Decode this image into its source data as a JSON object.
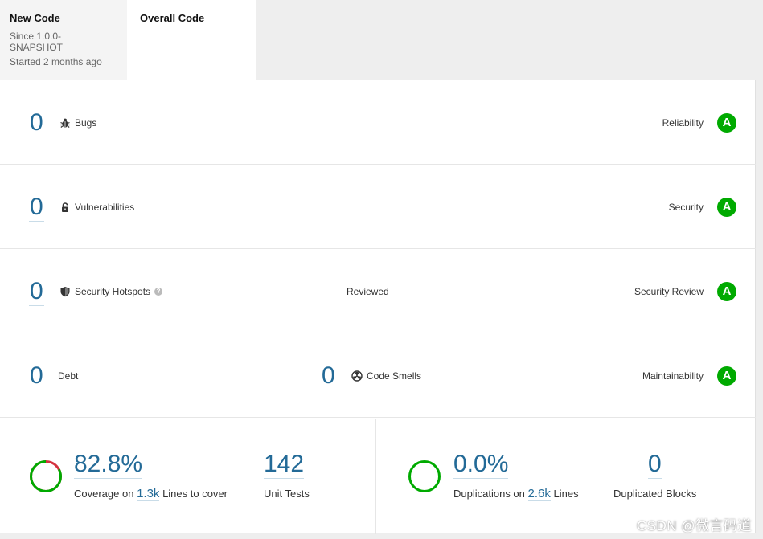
{
  "tabs": {
    "new_code": {
      "title": "New Code",
      "since": "Since 1.0.0-SNAPSHOT",
      "started": "Started 2 months ago"
    },
    "overall_code": {
      "title": "Overall Code"
    }
  },
  "rows": {
    "bugs": {
      "value": "0",
      "label": "Bugs",
      "rating_label": "Reliability",
      "rating": "A"
    },
    "vulnerabilities": {
      "value": "0",
      "label": "Vulnerabilities",
      "rating_label": "Security",
      "rating": "A"
    },
    "hotspots": {
      "value": "0",
      "label": "Security Hotspots",
      "help": "?",
      "reviewed_value": "—",
      "reviewed_label": "Reviewed",
      "rating_label": "Security Review",
      "rating": "A"
    },
    "maintainability": {
      "debt_value": "0",
      "debt_label": "Debt",
      "smells_value": "0",
      "smells_label": "Code Smells",
      "rating_label": "Maintainability",
      "rating": "A"
    }
  },
  "coverage": {
    "percent_text": "82.8%",
    "percent": 82.8,
    "label_prefix": "Coverage on",
    "lines_value": "1.3k",
    "label_suffix": "Lines to cover",
    "unit_tests_value": "142",
    "unit_tests_label": "Unit Tests"
  },
  "duplications": {
    "percent_text": "0.0%",
    "percent": 0.0,
    "label_prefix": "Duplications on",
    "lines_value": "2.6k",
    "label_suffix": "Lines",
    "blocks_value": "0",
    "blocks_label": "Duplicated Blocks"
  },
  "colors": {
    "accent": "#236a97",
    "rating_a": "#00aa00",
    "coverage_good": "#00aa00",
    "coverage_bad": "#d4333f"
  },
  "watermark": "CSDN @微言码道"
}
